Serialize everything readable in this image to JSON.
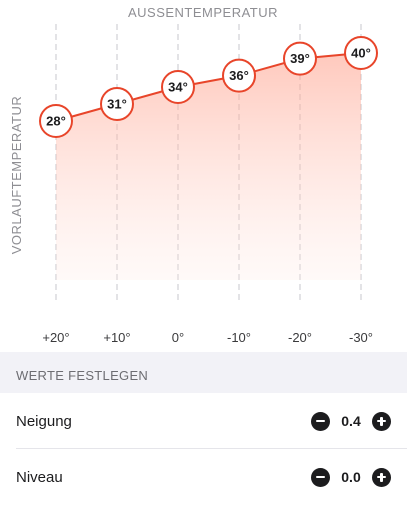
{
  "chart_data": {
    "type": "line",
    "x_title": "AUSSENTEMPERATUR",
    "y_title": "VORLAUFTEMPERATUR",
    "categories": [
      "+20°",
      "+10°",
      "0°",
      "-10°",
      "-20°",
      "-30°"
    ],
    "x": [
      20,
      10,
      0,
      -10,
      -20,
      -30
    ],
    "values": [
      28,
      31,
      34,
      36,
      39,
      40
    ],
    "point_labels": [
      "28°",
      "31°",
      "34°",
      "36°",
      "39°",
      "40°"
    ],
    "grid": "vertical dashed",
    "line_color": "#e8452a",
    "fill_color": "#ffd9d1"
  },
  "section": {
    "title": "WERTE FESTLEGEN"
  },
  "rows": [
    {
      "label": "Neigung",
      "value": "0.4"
    },
    {
      "label": "Niveau",
      "value": "0.0"
    }
  ],
  "icons": {
    "decrease": "minus-circle-icon",
    "increase": "plus-circle-icon"
  }
}
